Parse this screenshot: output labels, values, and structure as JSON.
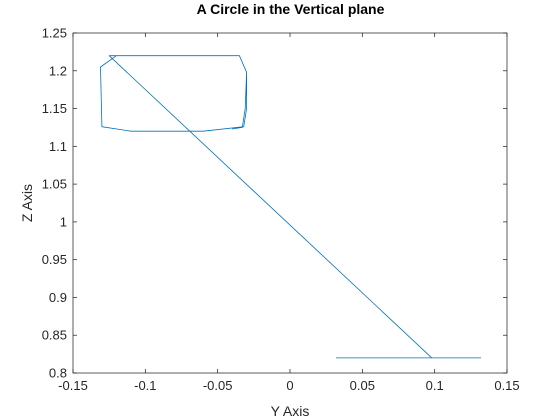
{
  "chart_data": {
    "type": "line",
    "title": "A Circle in the Vertical plane",
    "xlabel": "Y Axis",
    "ylabel": "Z Axis",
    "xlim": [
      -0.15,
      0.15
    ],
    "ylim": [
      0.8,
      1.25
    ],
    "xticks": [
      -0.15,
      -0.1,
      -0.05,
      0,
      0.05,
      0.1,
      0.15
    ],
    "xtick_labels": [
      "-0.15",
      "-0.1",
      "-0.05",
      "0",
      "0.05",
      "0.1",
      "0.15"
    ],
    "yticks": [
      0.8,
      0.85,
      0.9,
      0.95,
      1,
      1.05,
      1.1,
      1.15,
      1.2,
      1.25
    ],
    "ytick_labels": [
      "0.8",
      "0.85",
      "0.9",
      "0.95",
      "1",
      "1.05",
      "1.1",
      "1.15",
      "1.2",
      "1.25"
    ],
    "grid": false,
    "line_color": "#0072BD",
    "series": [
      {
        "x": [
          0.132,
          0.098,
          0.032,
          0.098,
          -0.125,
          -0.12,
          -0.035,
          -0.03,
          -0.03,
          -0.032,
          -0.06,
          -0.11,
          -0.13,
          -0.131,
          -0.12,
          -0.035,
          -0.03,
          -0.031,
          -0.033,
          -0.04
        ],
        "y": [
          0.82,
          0.82,
          0.82,
          0.82,
          1.22,
          1.22,
          1.22,
          1.198,
          1.15,
          1.126,
          1.12,
          1.12,
          1.126,
          1.205,
          1.22,
          1.22,
          1.198,
          1.15,
          1.125,
          1.123
        ]
      }
    ]
  }
}
